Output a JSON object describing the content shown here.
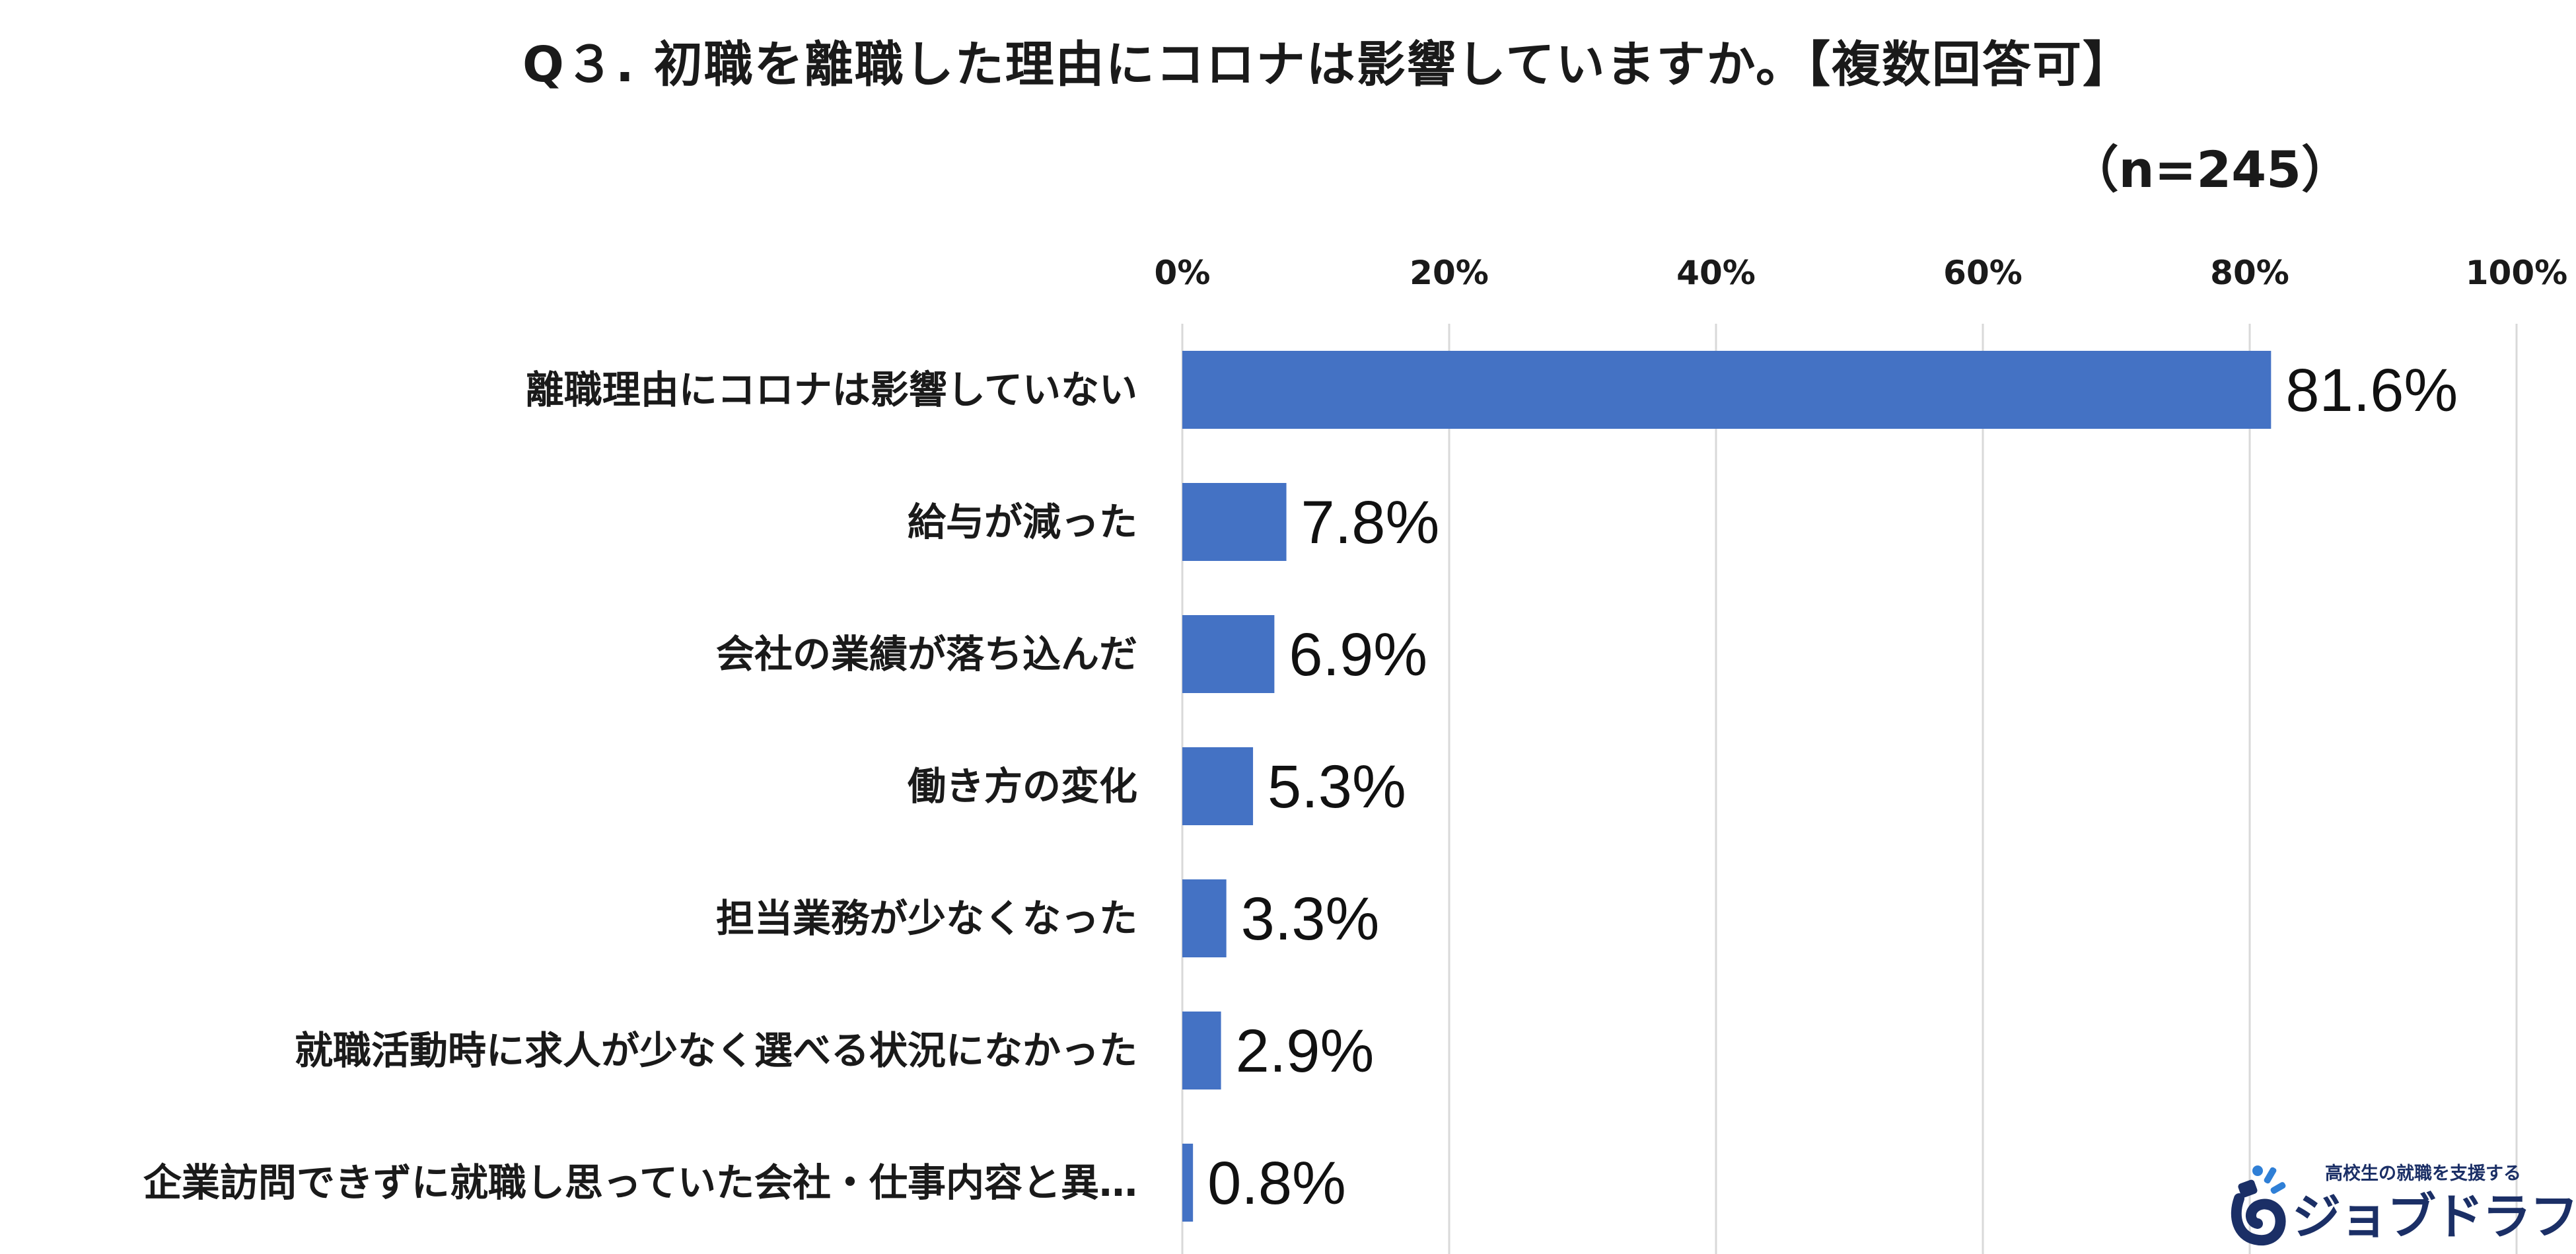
{
  "chart_data": {
    "type": "bar",
    "orientation": "horizontal",
    "title": "Q３. 初職を離職した理由にコロナは影響していますか。【複数回答可】",
    "subtitle": "（n=245）",
    "categories": [
      "離職理由にコロナは影響していない",
      "給与が減った",
      "会社の業績が落ち込んだ",
      "働き方の変化",
      "担当業務が少なくなった",
      "就職活動時に求人が少なく選べる状況になかった",
      "企業訪問できずに就職し思っていた会社・仕事内容と異…"
    ],
    "values": [
      81.6,
      7.8,
      6.9,
      5.3,
      3.3,
      2.9,
      0.8
    ],
    "data_labels": [
      "81.6%",
      "7.8%",
      "6.9%",
      "5.3%",
      "3.3%",
      "2.9%",
      "0.8%"
    ],
    "xlim": [
      0,
      100
    ],
    "x_ticks": [
      0,
      20,
      40,
      60,
      80,
      100
    ],
    "x_tick_labels": [
      "0%",
      "20%",
      "40%",
      "60%",
      "80%",
      "100%"
    ],
    "axis_position": "top",
    "grid": true,
    "bar_color": "#4472c4",
    "grid_color": "#d9d9d9"
  },
  "logo": {
    "tagline": "高校生の就職を支援する",
    "name": "ジョブドラフト",
    "color": "#1b2f66",
    "accent": "#2f7fd6"
  }
}
